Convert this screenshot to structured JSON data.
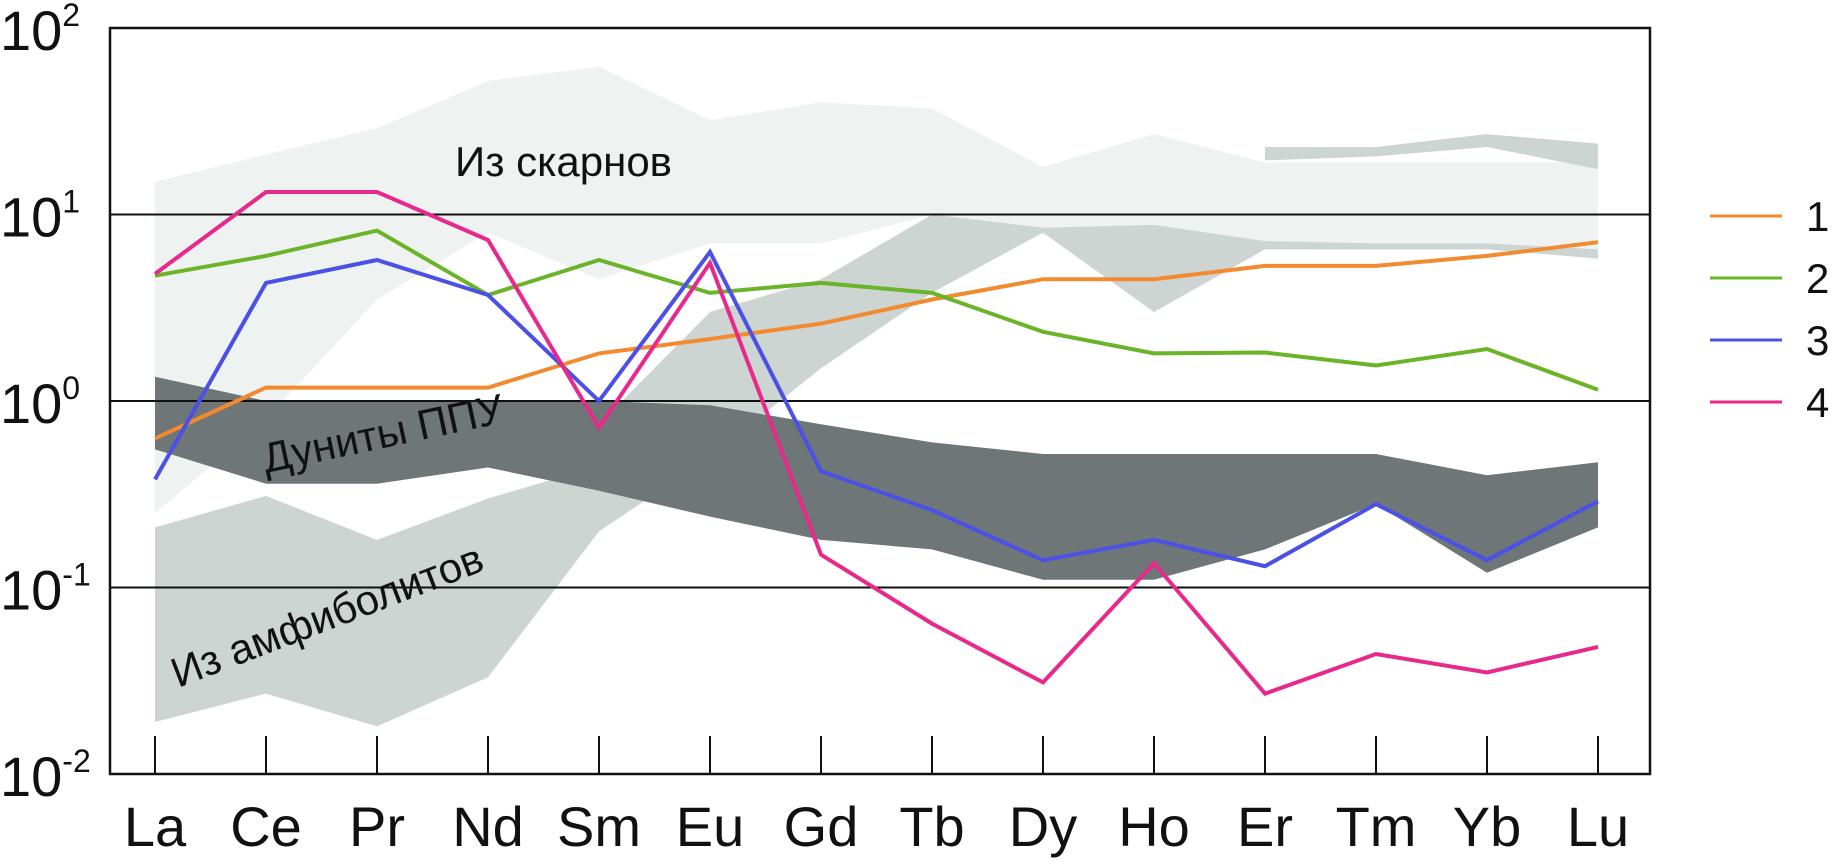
{
  "chart_data": {
    "type": "line",
    "y_scale": "log",
    "ylim": [
      0.01,
      100
    ],
    "grid": "horizontal at each decade",
    "legend_placement": "right",
    "categories": [
      "La",
      "Ce",
      "Pr",
      "Nd",
      "Sm",
      "Eu",
      "Gd",
      "Tb",
      "Dy",
      "Ho",
      "Er",
      "Tm",
      "Yb",
      "Lu"
    ],
    "y_ticks": [
      {
        "base": "10",
        "exp": "2",
        "value": 100
      },
      {
        "base": "10",
        "exp": "1",
        "value": 10
      },
      {
        "base": "10",
        "exp": "0",
        "value": 1
      },
      {
        "base": "10",
        "exp": "-1",
        "value": 0.1
      },
      {
        "base": "10",
        "exp": "-2",
        "value": 0.01
      }
    ],
    "bands": [
      {
        "label": "Из скарнов",
        "color": "#eef2f1",
        "upper": [
          15,
          21,
          29,
          52,
          62,
          32,
          40,
          37,
          18,
          27,
          19,
          19,
          19,
          19
        ],
        "lower": [
          0.25,
          0.8,
          3.5,
          8,
          4.5,
          7,
          7,
          10,
          7.8,
          6.5,
          6.8,
          6.8,
          6.8,
          6.3
        ]
      },
      {
        "label": "",
        "color": "#cdd5d2",
        "upper": [
          null,
          null,
          null,
          null,
          null,
          null,
          null,
          null,
          null,
          null,
          23,
          23,
          27,
          24
        ],
        "lower": [
          null,
          null,
          null,
          null,
          null,
          null,
          null,
          null,
          null,
          null,
          19.5,
          20.5,
          23,
          17.5
        ]
      },
      {
        "label": "",
        "color": "#cdd5d2",
        "upper": [
          null,
          null,
          null,
          null,
          0.75,
          3,
          4.5,
          10,
          8.5,
          8.8,
          7.2,
          7,
          7,
          6.5
        ],
        "lower": [
          null,
          null,
          null,
          null,
          0.2,
          0.5,
          1.5,
          3.8,
          8,
          3,
          6.5,
          6.5,
          6.5,
          5.8
        ]
      },
      {
        "label": "Из амфиболитов",
        "color": "#cdd5d2",
        "upper": [
          0.21,
          0.31,
          0.18,
          0.3,
          0.45,
          null,
          null,
          null,
          null,
          null,
          null,
          null,
          null,
          null
        ],
        "lower": [
          0.019,
          0.027,
          0.018,
          0.033,
          0.2,
          null,
          null,
          null,
          null,
          null,
          null,
          null,
          null,
          null
        ]
      },
      {
        "label": "Дуниты ППУ",
        "color": "#6f7677",
        "upper": [
          1.35,
          1.0,
          1.0,
          1.0,
          1.0,
          0.95,
          0.75,
          0.6,
          0.52,
          0.52,
          0.52,
          0.52,
          0.4,
          0.47
        ],
        "lower": [
          0.55,
          0.36,
          0.36,
          0.44,
          0.33,
          0.24,
          0.18,
          0.16,
          0.11,
          0.11,
          0.16,
          0.28,
          0.12,
          0.21
        ]
      }
    ],
    "series": [
      {
        "name": "1",
        "color": "#f28a30",
        "values": [
          0.63,
          1.18,
          1.18,
          1.18,
          1.8,
          2.15,
          2.6,
          3.5,
          4.5,
          4.5,
          5.3,
          5.3,
          6.0,
          7.1
        ]
      },
      {
        "name": "2",
        "color": "#6ab42a",
        "values": [
          4.7,
          6.0,
          8.2,
          3.7,
          5.7,
          3.8,
          4.3,
          3.8,
          2.35,
          1.8,
          1.82,
          1.55,
          1.9,
          1.15
        ]
      },
      {
        "name": "3",
        "color": "#4b50e6",
        "values": [
          0.38,
          4.3,
          5.7,
          3.7,
          1.0,
          6.3,
          0.42,
          0.26,
          0.14,
          0.18,
          0.13,
          0.28,
          0.14,
          0.29
        ]
      },
      {
        "name": "4",
        "color": "#e8288a",
        "values": [
          4.8,
          13.2,
          13.2,
          7.3,
          0.72,
          5.5,
          0.15,
          0.064,
          0.031,
          0.135,
          0.027,
          0.044,
          0.035,
          0.048
        ]
      }
    ]
  }
}
